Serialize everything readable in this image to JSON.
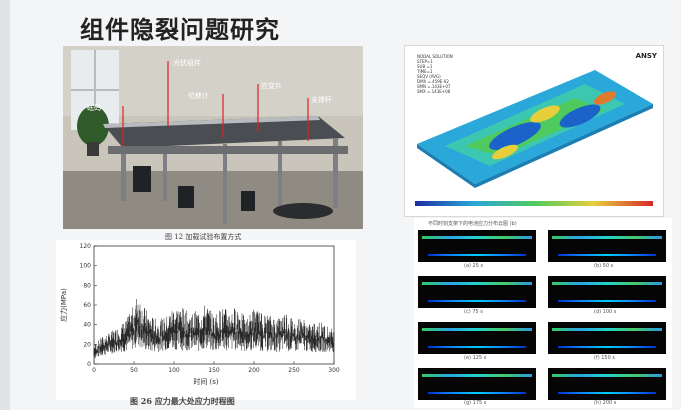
{
  "slide": {
    "title": "组件隐裂问题研究"
  },
  "photo": {
    "caption": "图 12  加载试验布置方式",
    "callouts": {
      "pv_module": "光伏组件",
      "strain_gauge": "应变片",
      "displacement_meter": "位移计",
      "weight": "砝码",
      "support_rod": "支撑杆"
    }
  },
  "simulation": {
    "brand": "ANSY",
    "header_lines": [
      "NODAL SOLUTION",
      "STEP=1",
      "SUB =1",
      "TIME=1",
      "SEQV (AVG)",
      "DMX =.459E-02",
      "SMN =.143E+07",
      "SMX =.143E+08"
    ]
  },
  "strip_grid": {
    "heading": "不同时刻支架下的电池应力分布云图 (b)",
    "cells": [
      {
        "label": "(a)   25 s"
      },
      {
        "label": "(b)   50 s"
      },
      {
        "label": "(c)   75 s"
      },
      {
        "label": "(d)   100 s"
      },
      {
        "label": "(e)   125 s"
      },
      {
        "label": "(f)   150 s"
      },
      {
        "label": "(g)   175 s"
      },
      {
        "label": "(h)   200 s"
      }
    ]
  },
  "chart_data": {
    "type": "line",
    "title": "",
    "xlabel": "时间 (s)",
    "ylabel": "应力(MPa)",
    "xlim": [
      0,
      300
    ],
    "ylim": [
      0,
      120
    ],
    "xticks": [
      "0",
      "50",
      "100",
      "150",
      "200",
      "250",
      "300"
    ],
    "yticks": [
      "0",
      "20",
      "40",
      "60",
      "80",
      "100",
      "120"
    ],
    "caption": "图 26  应力最大处应力时程图",
    "series": [
      {
        "x": [
          0,
          10,
          20,
          30,
          40,
          50,
          55,
          60,
          70,
          80,
          90,
          100,
          110,
          120,
          130,
          140,
          150,
          160,
          170,
          180,
          190,
          200,
          210,
          220,
          230,
          240,
          250,
          260,
          270,
          280,
          290,
          300
        ],
        "y": [
          20,
          28,
          32,
          38,
          45,
          60,
          75,
          62,
          50,
          45,
          48,
          60,
          58,
          52,
          55,
          62,
          50,
          58,
          55,
          60,
          45,
          58,
          52,
          50,
          48,
          55,
          45,
          48,
          40,
          45,
          40,
          35
        ],
        "y_low": [
          5,
          8,
          10,
          12,
          12,
          15,
          18,
          14,
          12,
          12,
          14,
          15,
          13,
          14,
          12,
          15,
          12,
          14,
          13,
          14,
          12,
          14,
          13,
          12,
          12,
          13,
          12,
          13,
          12,
          12,
          12,
          12
        ]
      }
    ]
  }
}
